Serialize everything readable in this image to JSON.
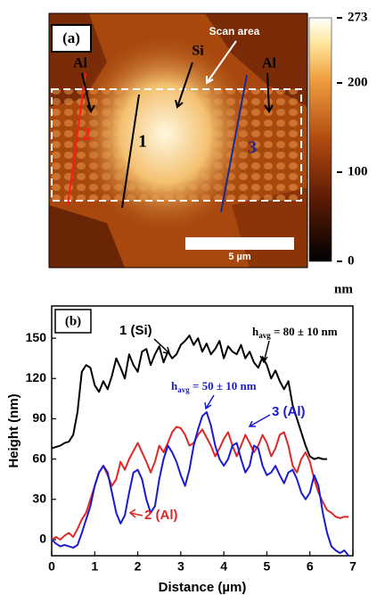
{
  "image": {
    "panel_label": "(a)",
    "annotations": [
      "Al",
      "Si",
      "Al",
      "Scan area"
    ],
    "line_labels": [
      "2",
      "1",
      "3"
    ],
    "scale_bar": "5 µm",
    "colorbar": {
      "unit": "nm",
      "lim": [
        0,
        273
      ],
      "ticks": [
        0,
        100,
        200,
        273
      ]
    }
  },
  "chart_data": {
    "type": "line",
    "panel_label": "(b)",
    "xlabel": "Distance (µm)",
    "ylabel": "Height (nm)",
    "xlim": [
      0,
      7
    ],
    "ylim": [
      -12,
      174
    ],
    "xticks": [
      0,
      1,
      2,
      3,
      4,
      5,
      6,
      7
    ],
    "yticks": [
      0,
      30,
      60,
      90,
      120,
      150
    ],
    "grid": false,
    "annotations": [
      {
        "text": "1 (Si)"
      },
      {
        "text": "3 (Al)"
      },
      {
        "text": "2 (Al)"
      },
      {
        "base": "h",
        "sub": "avg",
        "text": " = 80 ± 10 nm"
      },
      {
        "base": "h",
        "sub": "avg",
        "text": " = 50 ± 10 nm"
      }
    ],
    "x": [
      0,
      0.1,
      0.2,
      0.3,
      0.4,
      0.5,
      0.6,
      0.7,
      0.8,
      0.9,
      1,
      1.1,
      1.2,
      1.3,
      1.4,
      1.5,
      1.6,
      1.7,
      1.8,
      1.9,
      2,
      2.1,
      2.2,
      2.3,
      2.4,
      2.5,
      2.6,
      2.7,
      2.8,
      2.9,
      3,
      3.1,
      3.2,
      3.3,
      3.4,
      3.5,
      3.6,
      3.7,
      3.8,
      3.9,
      4,
      4.1,
      4.2,
      4.3,
      4.4,
      4.5,
      4.6,
      4.7,
      4.8,
      4.9,
      5,
      5.1,
      5.2,
      5.3,
      5.4,
      5.5,
      5.6,
      5.7,
      5.8,
      5.9,
      6,
      6.1,
      6.2,
      6.3,
      6.4,
      6.5,
      6.6,
      6.7,
      6.8,
      6.9,
      7
    ],
    "series": [
      {
        "name": "1 (Si)",
        "color": "#000000",
        "values": [
          68,
          69,
          70,
          72,
          73,
          78,
          95,
          125,
          130,
          128,
          115,
          110,
          118,
          112,
          122,
          135,
          128,
          120,
          138,
          130,
          125,
          140,
          142,
          130,
          138,
          144,
          132,
          140,
          135,
          138,
          145,
          148,
          152,
          145,
          150,
          140,
          146,
          138,
          142,
          148,
          135,
          144,
          140,
          138,
          145,
          135,
          140,
          132,
          128,
          136,
          130,
          120,
          126,
          118,
          112,
          118,
          100,
          90,
          80,
          70,
          62,
          60,
          61,
          60,
          60,
          null,
          null,
          null,
          null,
          null,
          null
        ]
      },
      {
        "name": "2 (Al)",
        "color": "#e02828",
        "values": [
          0,
          2,
          0,
          3,
          5,
          2,
          8,
          15,
          20,
          30,
          40,
          50,
          55,
          48,
          40,
          45,
          58,
          52,
          60,
          66,
          72,
          65,
          58,
          50,
          58,
          70,
          65,
          72,
          80,
          84,
          83,
          78,
          70,
          72,
          78,
          82,
          76,
          70,
          62,
          68,
          75,
          80,
          70,
          62,
          70,
          78,
          72,
          65,
          70,
          78,
          72,
          62,
          68,
          78,
          80,
          70,
          55,
          50,
          60,
          65,
          58,
          45,
          35,
          28,
          22,
          20,
          17,
          16,
          17,
          17,
          null
        ]
      },
      {
        "name": "3 (Al)",
        "color": "#1a1ad0",
        "values": [
          0,
          -3,
          -5,
          -4,
          -5,
          -6,
          -4,
          5,
          15,
          25,
          40,
          50,
          55,
          50,
          35,
          20,
          12,
          18,
          35,
          50,
          52,
          45,
          30,
          20,
          25,
          45,
          60,
          70,
          65,
          58,
          48,
          40,
          52,
          70,
          82,
          92,
          95,
          85,
          70,
          60,
          55,
          60,
          70,
          72,
          60,
          50,
          55,
          70,
          68,
          55,
          48,
          50,
          55,
          48,
          42,
          50,
          52,
          45,
          35,
          30,
          35,
          48,
          40,
          20,
          5,
          -5,
          -8,
          -10,
          -8,
          -12,
          null
        ]
      }
    ]
  }
}
